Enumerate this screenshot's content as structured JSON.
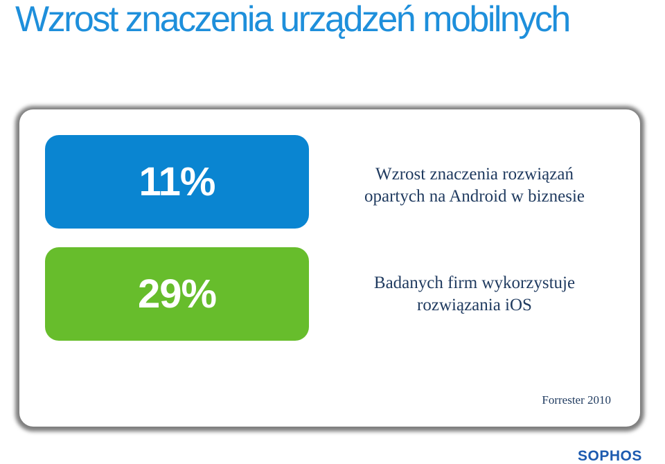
{
  "slide": {
    "title": "Wzrost znaczenia urządzeń mobilnych"
  },
  "stats": [
    {
      "value": "11%",
      "description_line1": "Wzrost znaczenia rozwiązań",
      "description_line2": "opartych na Android w biznesie",
      "color": "#0a85d1"
    },
    {
      "value": "29%",
      "description_line1": "Badanych firm wykorzystuje",
      "description_line2": "rozwiązania iOS",
      "color": "#67bd2c"
    }
  ],
  "source": "Forrester 2010",
  "logo": "SOPHOS",
  "colors": {
    "title": "#1e8fdb",
    "text": "#1f3a5f",
    "logo": "#1d5bb0"
  }
}
